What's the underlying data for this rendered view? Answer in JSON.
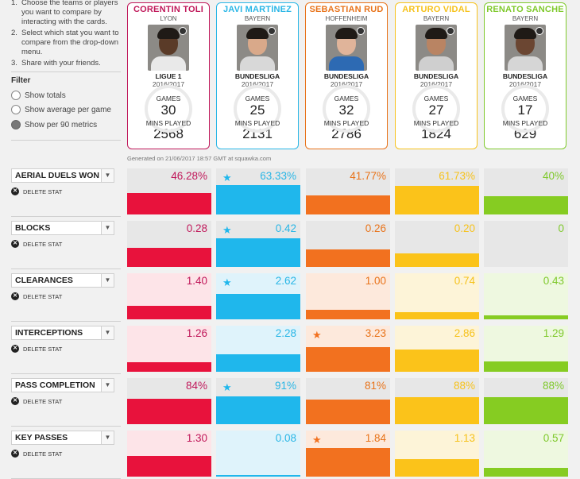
{
  "instructions": [
    {
      "num": "1.",
      "text": "Choose the teams or players you want to compare by interacting with the cards."
    },
    {
      "num": "2.",
      "text": "Select which stat you want to compare from the drop-down menu."
    },
    {
      "num": "3.",
      "text": "Share with your friends."
    }
  ],
  "filter": {
    "title": "Filter",
    "options": [
      {
        "label": "Show totals",
        "selected": false
      },
      {
        "label": "Show average per game",
        "selected": false
      },
      {
        "label": "Show per 90 metrics",
        "selected": true
      }
    ]
  },
  "labels": {
    "games": "GAMES",
    "mins": "MINS PLAYED",
    "delete": "DELETE STAT"
  },
  "generated": "Generated on 21/06/2017 18:57 GMT at squawka.com",
  "players": [
    {
      "name": "CORENTIN TOLI",
      "club": "LYON",
      "league": "LIGUE 1",
      "season": "2016/2017",
      "games": "30",
      "mins": "2568",
      "color": "#c0185a",
      "bar": "#e8123c",
      "tint": "#fde4e8",
      "skin": "#5a3b28",
      "kit": "#e9e9e9"
    },
    {
      "name": "JAVI MARTÍNEZ",
      "club": "BAYERN",
      "league": "BUNDESLIGA",
      "season": "2016/2017",
      "games": "25",
      "mins": "2131",
      "color": "#29b6e6",
      "bar": "#1fb7ec",
      "tint": "#dff3fb",
      "skin": "#d9a98a",
      "kit": "#d8d8d8"
    },
    {
      "name": "SEBASTIAN RUD",
      "club": "HOFFENHEIM",
      "league": "BUNDESLIGA",
      "season": "2016/2017",
      "games": "32",
      "mins": "2786",
      "color": "#e8731a",
      "bar": "#f2711f",
      "tint": "#fde9dc",
      "skin": "#e0b49a",
      "kit": "#2d6ab3"
    },
    {
      "name": "ARTURO VIDAL",
      "club": "BAYERN",
      "league": "BUNDESLIGA",
      "season": "2016/2017",
      "games": "27",
      "mins": "1824",
      "color": "#f6c21c",
      "bar": "#fbc31a",
      "tint": "#fdf4d8",
      "skin": "#b98463",
      "kit": "#cfcfcf"
    },
    {
      "name": "RENATO SANCHE",
      "club": "BAYERN",
      "league": "BUNDESLIGA",
      "season": "2016/2017",
      "games": "17",
      "mins": "629",
      "color": "#7fc92c",
      "bar": "#86cc22",
      "tint": "#eef8e0",
      "skin": "#6b4632",
      "kit": "#d6d6d6"
    }
  ],
  "stats": [
    {
      "name": "AERIAL DUELS WON %",
      "values": [
        "46.28%",
        "63.33%",
        "41.77%",
        "61.73%",
        "40%"
      ],
      "fill": [
        0.46,
        0.63,
        0.42,
        0.62,
        0.4
      ],
      "best": 1
    },
    {
      "name": "BLOCKS",
      "values": [
        "0.28",
        "0.42",
        "0.26",
        "0.20",
        "0"
      ],
      "fill": [
        0.42,
        0.62,
        0.38,
        0.29,
        0.0
      ],
      "best": 1
    },
    {
      "name": "CLEARANCES",
      "values": [
        "1.40",
        "2.62",
        "1.00",
        "0.74",
        "0.43"
      ],
      "fill": [
        0.3,
        0.55,
        0.21,
        0.16,
        0.09
      ],
      "best": 1
    },
    {
      "name": "INTERCEPTIONS",
      "values": [
        "1.26",
        "2.28",
        "3.23",
        "2.86",
        "1.29"
      ],
      "fill": [
        0.21,
        0.38,
        0.54,
        0.48,
        0.22
      ],
      "best": 2
    },
    {
      "name": "PASS COMPLETION",
      "values": [
        "84%",
        "91%",
        "81%",
        "88%",
        "88%"
      ],
      "fill": [
        0.56,
        0.61,
        0.54,
        0.59,
        0.59
      ],
      "best": 1
    },
    {
      "name": "KEY PASSES",
      "values": [
        "1.30",
        "0.08",
        "1.84",
        "1.13",
        "0.57"
      ],
      "fill": [
        0.44,
        0.03,
        0.62,
        0.38,
        0.19
      ],
      "best": 2
    }
  ]
}
